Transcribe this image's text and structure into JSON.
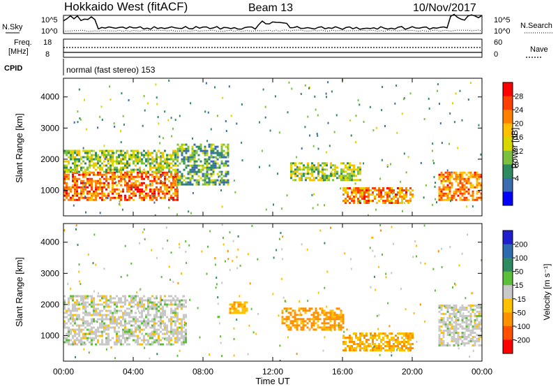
{
  "header": {
    "station": "Hokkaido West (fitACF)",
    "beam": "Beam 13",
    "date": "10/Nov/2017"
  },
  "strip_panels": {
    "nsky_label": "N.Sky",
    "nsearch_label": "N.Search",
    "noise_ticks": [
      "10^5",
      "10^0"
    ],
    "freq_label": "Freq.",
    "freq_unit": "[MHz]",
    "freq_ticks": [
      "18",
      "8"
    ],
    "nave_ticks": [
      "60",
      "0"
    ],
    "nave_label": "Nave",
    "cpid_label": "CPID",
    "cpid_text": "normal (fast stereo) 153"
  },
  "axes": {
    "ylabel": "Slant Range [km]",
    "xlabel": "Time UT",
    "yticks": [
      "4000",
      "3000",
      "2000",
      "1000"
    ],
    "xticks": [
      "00:00",
      "04:00",
      "08:00",
      "12:00",
      "16:00",
      "20:00",
      "00:00"
    ]
  },
  "colorbars": {
    "power": {
      "label": "Power [dB]",
      "ticks": [
        "28",
        "24",
        "20",
        "16",
        "12",
        "8",
        "4"
      ],
      "colors": [
        "#ff0000",
        "#ff4000",
        "#ff8000",
        "#ffc000",
        "#d8d800",
        "#7cc040",
        "#2e8a60",
        "#3c6cb0",
        "#0000ff"
      ]
    },
    "velocity": {
      "label": "Velocity [m s⁻¹]",
      "ticks": [
        "200",
        "100",
        "50",
        "15",
        "-15",
        "-50",
        "-100",
        "-200"
      ],
      "colors": [
        "#1f1fd0",
        "#2e6ab0",
        "#2e8a60",
        "#5bbf3a",
        "#c8c8c8",
        "#ffc000",
        "#ff9000",
        "#ff5000",
        "#ff0000"
      ]
    }
  },
  "chart_data": {
    "type": "heatmap",
    "x_label": "Time UT",
    "y_label": "Slant Range [km]",
    "xlim_hours": [
      0,
      24
    ],
    "ylim_km": [
      180,
      4600
    ],
    "power_panel": {
      "regions": [
        {
          "t0": 0.0,
          "t1": 6.5,
          "r0": 700,
          "r1": 1600,
          "power_db": 26
        },
        {
          "t0": 0.0,
          "t1": 6.5,
          "r0": 1600,
          "r1": 2300,
          "power_db": 14
        },
        {
          "t0": 6.5,
          "t1": 9.5,
          "r0": 1200,
          "r1": 2500,
          "power_db": 10
        },
        {
          "t0": 13.0,
          "t1": 17.0,
          "r0": 1300,
          "r1": 1900,
          "power_db": 14
        },
        {
          "t0": 16.0,
          "t1": 20.0,
          "r0": 600,
          "r1": 1100,
          "power_db": 24
        },
        {
          "t0": 21.5,
          "t1": 24.0,
          "r0": 700,
          "r1": 1600,
          "power_db": 24
        }
      ]
    },
    "velocity_panel": {
      "regions": [
        {
          "t0": 0.0,
          "t1": 7.0,
          "r0": 700,
          "r1": 2300,
          "velocity": 0
        },
        {
          "t0": 9.5,
          "t1": 10.5,
          "r0": 1700,
          "r1": 2100,
          "velocity": -40
        },
        {
          "t0": 12.5,
          "t1": 16.0,
          "r0": 1200,
          "r1": 1900,
          "velocity": -60
        },
        {
          "t0": 16.0,
          "t1": 20.0,
          "r0": 500,
          "r1": 1100,
          "velocity": -45
        },
        {
          "t0": 21.5,
          "t1": 24.0,
          "r0": 700,
          "r1": 2000,
          "velocity": 0
        }
      ]
    }
  }
}
